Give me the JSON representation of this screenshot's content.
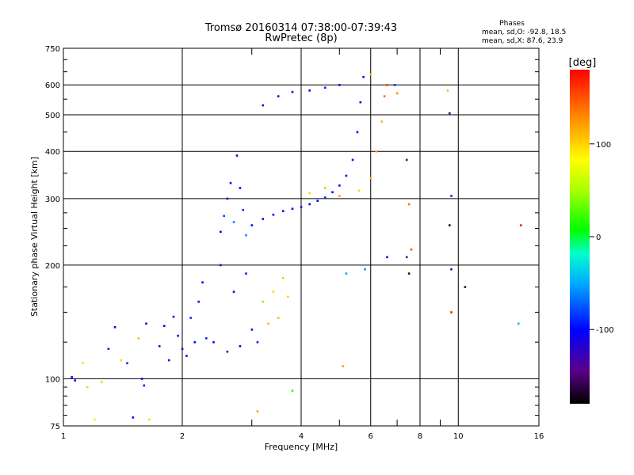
{
  "chart_data": {
    "type": "scatter",
    "title": "Tromsø 20160314 07:38:00-07:39:43",
    "subtitle": "RwPretec (8p)",
    "xlabel": "Frequency [MHz]",
    "ylabel": "Stationary phase Virtual Height [km]",
    "x_scale": "log",
    "y_scale": "log",
    "xlim": [
      1,
      16
    ],
    "ylim": [
      75,
      750
    ],
    "x_ticks": [
      1,
      2,
      4,
      6,
      8,
      10,
      16
    ],
    "x_tick_labels": [
      "1",
      "2",
      "4",
      "6",
      "8",
      "10",
      "16"
    ],
    "y_ticks": [
      75,
      100,
      200,
      300,
      400,
      500,
      600,
      750
    ],
    "y_tick_labels": [
      "75",
      "100",
      "200",
      "300",
      "400",
      "500",
      "600",
      "750"
    ],
    "grid": true,
    "stats": {
      "heading": "Phases",
      "line_o": "mean, sd,O: -92.8, 18.5",
      "line_x": "mean, sd,X:  87.6, 23.9"
    },
    "colorbar": {
      "label": "[deg]",
      "range": [
        -180,
        180
      ],
      "ticks": [
        100,
        0,
        -100
      ],
      "tick_labels": [
        "100",
        "0",
        "-100"
      ],
      "colormap": "rainbow"
    },
    "series": [
      {
        "values": [
          {
            "x": 1.05,
            "y": 101,
            "phase": -110
          },
          {
            "x": 1.07,
            "y": 99,
            "phase": -100
          },
          {
            "x": 1.12,
            "y": 110,
            "phase": 60
          },
          {
            "x": 1.2,
            "y": 78,
            "phase": 90
          },
          {
            "x": 1.25,
            "y": 98,
            "phase": 100
          },
          {
            "x": 1.3,
            "y": 120,
            "phase": -140
          },
          {
            "x": 1.35,
            "y": 137,
            "phase": -100
          },
          {
            "x": 1.4,
            "y": 112,
            "phase": 100
          },
          {
            "x": 1.45,
            "y": 110,
            "phase": -90
          },
          {
            "x": 1.5,
            "y": 79,
            "phase": -100
          },
          {
            "x": 1.55,
            "y": 128,
            "phase": 110
          },
          {
            "x": 1.6,
            "y": 96,
            "phase": -110
          },
          {
            "x": 1.62,
            "y": 140,
            "phase": -110
          },
          {
            "x": 1.65,
            "y": 78,
            "phase": 100
          },
          {
            "x": 1.75,
            "y": 122,
            "phase": -95
          },
          {
            "x": 1.8,
            "y": 138,
            "phase": -105
          },
          {
            "x": 1.85,
            "y": 112,
            "phase": -110
          },
          {
            "x": 1.9,
            "y": 146,
            "phase": -100
          },
          {
            "x": 1.95,
            "y": 130,
            "phase": -120
          },
          {
            "x": 2.0,
            "y": 120,
            "phase": -110
          },
          {
            "x": 2.05,
            "y": 115,
            "phase": -100
          },
          {
            "x": 2.1,
            "y": 145,
            "phase": -90
          },
          {
            "x": 2.15,
            "y": 125,
            "phase": -110
          },
          {
            "x": 2.2,
            "y": 160,
            "phase": -100
          },
          {
            "x": 2.25,
            "y": 180,
            "phase": -110
          },
          {
            "x": 2.3,
            "y": 128,
            "phase": -90
          },
          {
            "x": 2.4,
            "y": 125,
            "phase": -100
          },
          {
            "x": 2.5,
            "y": 200,
            "phase": -105
          },
          {
            "x": 2.6,
            "y": 118,
            "phase": -95
          },
          {
            "x": 2.7,
            "y": 170,
            "phase": -110
          },
          {
            "x": 2.8,
            "y": 122,
            "phase": -100
          },
          {
            "x": 2.9,
            "y": 190,
            "phase": -90
          },
          {
            "x": 3.0,
            "y": 135,
            "phase": -100
          },
          {
            "x": 3.1,
            "y": 125,
            "phase": -90
          },
          {
            "x": 3.2,
            "y": 160,
            "phase": 40
          },
          {
            "x": 3.3,
            "y": 140,
            "phase": 110
          },
          {
            "x": 3.4,
            "y": 170,
            "phase": 100
          },
          {
            "x": 3.5,
            "y": 145,
            "phase": 110
          },
          {
            "x": 3.6,
            "y": 185,
            "phase": 105
          },
          {
            "x": 3.7,
            "y": 165,
            "phase": 100
          },
          {
            "x": 1.58,
            "y": 100,
            "phase": -110
          },
          {
            "x": 1.15,
            "y": 95,
            "phase": 50
          },
          {
            "x": 2.5,
            "y": 245,
            "phase": -100
          },
          {
            "x": 2.55,
            "y": 270,
            "phase": -80
          },
          {
            "x": 2.6,
            "y": 300,
            "phase": -110
          },
          {
            "x": 2.65,
            "y": 330,
            "phase": -100
          },
          {
            "x": 2.7,
            "y": 260,
            "phase": -60
          },
          {
            "x": 2.75,
            "y": 390,
            "phase": -110
          },
          {
            "x": 2.8,
            "y": 320,
            "phase": -100
          },
          {
            "x": 2.85,
            "y": 280,
            "phase": -90
          },
          {
            "x": 2.9,
            "y": 240,
            "phase": -60
          },
          {
            "x": 3.0,
            "y": 255,
            "phase": -100
          },
          {
            "x": 3.2,
            "y": 265,
            "phase": -110
          },
          {
            "x": 3.4,
            "y": 272,
            "phase": -100
          },
          {
            "x": 3.6,
            "y": 278,
            "phase": -110
          },
          {
            "x": 3.8,
            "y": 282,
            "phase": -100
          },
          {
            "x": 4.0,
            "y": 285,
            "phase": -95
          },
          {
            "x": 4.2,
            "y": 290,
            "phase": -110
          },
          {
            "x": 4.4,
            "y": 296,
            "phase": -100
          },
          {
            "x": 4.6,
            "y": 302,
            "phase": -90
          },
          {
            "x": 4.8,
            "y": 312,
            "phase": -100
          },
          {
            "x": 5.0,
            "y": 325,
            "phase": -110
          },
          {
            "x": 5.2,
            "y": 345,
            "phase": -100
          },
          {
            "x": 5.4,
            "y": 380,
            "phase": -110
          },
          {
            "x": 5.55,
            "y": 450,
            "phase": -100
          },
          {
            "x": 5.65,
            "y": 540,
            "phase": -110
          },
          {
            "x": 5.75,
            "y": 630,
            "phase": -100
          },
          {
            "x": 4.2,
            "y": 310,
            "phase": 100
          },
          {
            "x": 4.6,
            "y": 320,
            "phase": 110
          },
          {
            "x": 5.0,
            "y": 305,
            "phase": 120
          },
          {
            "x": 5.6,
            "y": 315,
            "phase": 100
          },
          {
            "x": 6.0,
            "y": 340,
            "phase": 110
          },
          {
            "x": 6.2,
            "y": 400,
            "phase": 120
          },
          {
            "x": 6.4,
            "y": 480,
            "phase": 110
          },
          {
            "x": 6.5,
            "y": 560,
            "phase": 140
          },
          {
            "x": 6.6,
            "y": 600,
            "phase": 160
          },
          {
            "x": 3.2,
            "y": 530,
            "phase": -100
          },
          {
            "x": 3.5,
            "y": 560,
            "phase": -110
          },
          {
            "x": 3.8,
            "y": 575,
            "phase": -100
          },
          {
            "x": 4.2,
            "y": 580,
            "phase": -110
          },
          {
            "x": 4.6,
            "y": 590,
            "phase": -90
          },
          {
            "x": 5.0,
            "y": 600,
            "phase": -100
          },
          {
            "x": 6.0,
            "y": 640,
            "phase": 110
          },
          {
            "x": 6.9,
            "y": 600,
            "phase": -90
          },
          {
            "x": 7.0,
            "y": 570,
            "phase": 130
          },
          {
            "x": 7.4,
            "y": 380,
            "phase": -140
          },
          {
            "x": 7.5,
            "y": 290,
            "phase": 140
          },
          {
            "x": 7.6,
            "y": 220,
            "phase": 150
          },
          {
            "x": 7.5,
            "y": 190,
            "phase": -160
          },
          {
            "x": 9.4,
            "y": 580,
            "phase": 110
          },
          {
            "x": 9.5,
            "y": 505,
            "phase": -150
          },
          {
            "x": 9.6,
            "y": 305,
            "phase": -90
          },
          {
            "x": 9.5,
            "y": 255,
            "phase": -170
          },
          {
            "x": 9.6,
            "y": 195,
            "phase": -150
          },
          {
            "x": 9.6,
            "y": 150,
            "phase": 170
          },
          {
            "x": 10.4,
            "y": 175,
            "phase": -160
          },
          {
            "x": 14.4,
            "y": 255,
            "phase": 170
          },
          {
            "x": 14.2,
            "y": 140,
            "phase": -40
          },
          {
            "x": 5.2,
            "y": 190,
            "phase": -50
          },
          {
            "x": 5.8,
            "y": 195,
            "phase": -60
          },
          {
            "x": 6.6,
            "y": 210,
            "phase": -100
          },
          {
            "x": 7.4,
            "y": 210,
            "phase": -140
          },
          {
            "x": 5.1,
            "y": 108,
            "phase": 120
          },
          {
            "x": 3.8,
            "y": 93,
            "phase": 20
          },
          {
            "x": 3.1,
            "y": 82,
            "phase": 120
          }
        ]
      }
    ]
  }
}
